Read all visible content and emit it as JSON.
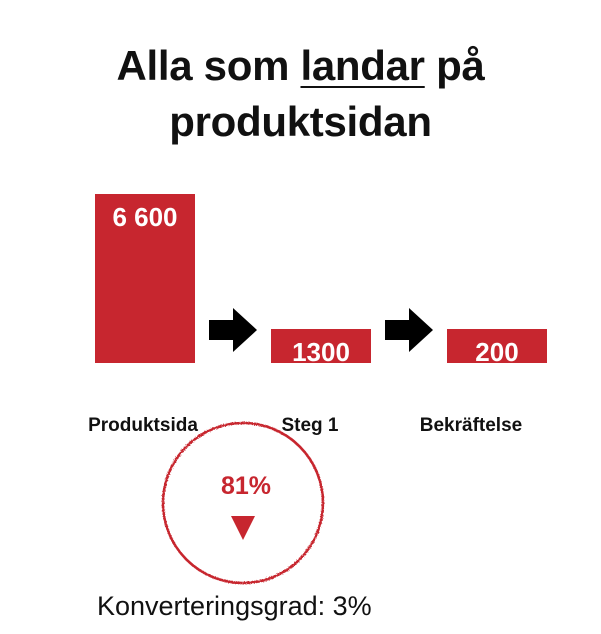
{
  "title": {
    "before": "Alla som ",
    "underlined": "landar",
    "after": " på",
    "line2": "produktsidan"
  },
  "chart_data": {
    "type": "bar",
    "categories": [
      "Produktsida",
      "Steg 1",
      "Bekräftelse"
    ],
    "values": [
      6600,
      1300,
      200
    ],
    "value_labels": [
      "6 600",
      "1300",
      "200"
    ],
    "ylim": [
      0,
      6600
    ],
    "grid": false,
    "bar_color": "#c7262f",
    "arrow_color": "#000000",
    "annotation": {
      "text": "81%",
      "direction": "down",
      "color": "#c7262f"
    }
  },
  "footer": "Konverteringsgrad: 3%"
}
